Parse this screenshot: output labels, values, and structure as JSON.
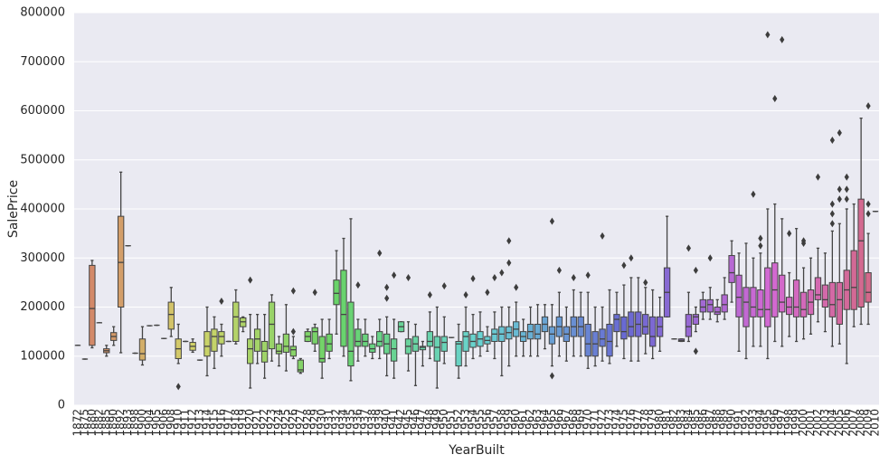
{
  "chart_data": {
    "type": "box",
    "x_label": "YearBuilt",
    "y_label": "SalePrice",
    "categories": [
      1872,
      1875,
      1880,
      1882,
      1885,
      1890,
      1892,
      1893,
      1898,
      1900,
      1904,
      1905,
      1906,
      1908,
      1910,
      1911,
      1912,
      1913,
      1914,
      1915,
      1916,
      1917,
      1918,
      1919,
      1920,
      1921,
      1922,
      1923,
      1924,
      1925,
      1926,
      1927,
      1928,
      1929,
      1930,
      1931,
      1932,
      1934,
      1935,
      1936,
      1937,
      1938,
      1939,
      1940,
      1941,
      1942,
      1945,
      1946,
      1947,
      1948,
      1949,
      1950,
      1951,
      1952,
      1953,
      1954,
      1955,
      1956,
      1957,
      1958,
      1959,
      1960,
      1961,
      1962,
      1963,
      1964,
      1965,
      1966,
      1967,
      1968,
      1969,
      1970,
      1971,
      1972,
      1973,
      1974,
      1975,
      1976,
      1977,
      1978,
      1979,
      1980,
      1981,
      1982,
      1983,
      1984,
      1985,
      1986,
      1987,
      1988,
      1989,
      1990,
      1991,
      1992,
      1993,
      1994,
      1995,
      1996,
      1997,
      1998,
      1999,
      2000,
      2001,
      2002,
      2003,
      2004,
      2005,
      2006,
      2007,
      2008,
      2009,
      2010
    ],
    "boxes": [
      [
        122000,
        122000,
        122000,
        122000,
        122000
      ],
      [
        94000,
        94000,
        94000,
        94000,
        94000
      ],
      [
        117000,
        122000,
        197000,
        285000,
        295000
      ],
      [
        168000,
        168000,
        168000,
        168000,
        168000
      ],
      [
        100000,
        107000,
        111000,
        115000,
        122000
      ],
      [
        122000,
        132000,
        140000,
        148000,
        160000
      ],
      [
        107000,
        200000,
        291000,
        385000,
        475000
      ],
      [
        325000,
        325000,
        325000,
        325000,
        325000
      ],
      [
        106000,
        106000,
        106000,
        106000,
        106000
      ],
      [
        82000,
        92000,
        105000,
        135000,
        160000
      ],
      [
        162000,
        162000,
        162000,
        162000,
        162000
      ],
      [
        163000,
        163000,
        163000,
        163000,
        163000
      ],
      [
        136000,
        136000,
        136000,
        136000,
        136000
      ],
      [
        140000,
        155000,
        185000,
        210000,
        240000
      ],
      [
        85000,
        95000,
        115000,
        135000,
        165000
      ],
      [
        130000,
        130000,
        130000,
        130000,
        130000
      ],
      [
        108000,
        112000,
        120000,
        128000,
        135000
      ],
      [
        92000,
        92000,
        92000,
        92000,
        92000
      ],
      [
        60000,
        100000,
        120000,
        150000,
        200000
      ],
      [
        75000,
        110000,
        140000,
        155000,
        180000
      ],
      [
        100000,
        125000,
        140000,
        150000,
        165000
      ],
      [
        130000,
        130000,
        130000,
        130000,
        130000
      ],
      [
        125000,
        130000,
        180000,
        210000,
        235000
      ],
      [
        150000,
        160000,
        170000,
        178000,
        180000
      ],
      [
        35000,
        85000,
        115000,
        135000,
        185000
      ],
      [
        85000,
        110000,
        135000,
        155000,
        185000
      ],
      [
        55000,
        88000,
        110000,
        130000,
        185000
      ],
      [
        90000,
        115000,
        165000,
        210000,
        225000
      ],
      [
        80000,
        105000,
        110000,
        125000,
        140000
      ],
      [
        70000,
        108000,
        120000,
        145000,
        205000
      ],
      [
        95000,
        100000,
        113000,
        120000,
        140000
      ],
      [
        65000,
        68000,
        72000,
        92000,
        95000
      ],
      [
        130000,
        130000,
        140000,
        150000,
        155000
      ],
      [
        110000,
        125000,
        150000,
        158000,
        165000
      ],
      [
        55000,
        88000,
        95000,
        140000,
        175000
      ],
      [
        95000,
        110000,
        125000,
        145000,
        175000
      ],
      [
        145000,
        205000,
        228000,
        255000,
        315000
      ],
      [
        100000,
        120000,
        185000,
        275000,
        340000
      ],
      [
        50000,
        80000,
        110000,
        210000,
        380000
      ],
      [
        90000,
        120000,
        130000,
        155000,
        175000
      ],
      [
        100000,
        120000,
        130000,
        145000,
        175000
      ],
      [
        95000,
        108000,
        115000,
        125000,
        140000
      ],
      [
        95000,
        120000,
        130000,
        150000,
        175000
      ],
      [
        60000,
        105000,
        125000,
        145000,
        180000
      ],
      [
        55000,
        90000,
        115000,
        135000,
        175000
      ],
      [
        150000,
        150000,
        160000,
        170000,
        170000
      ],
      [
        70000,
        105000,
        120000,
        135000,
        170000
      ],
      [
        40000,
        110000,
        125000,
        140000,
        165000
      ],
      [
        80000,
        113000,
        118000,
        120000,
        130000
      ],
      [
        95000,
        120000,
        130000,
        150000,
        190000
      ],
      [
        35000,
        90000,
        118000,
        140000,
        200000
      ],
      [
        85000,
        110000,
        128000,
        140000,
        180000
      ],
      [
        138000,
        138000,
        138000,
        138000,
        138000
      ],
      [
        55000,
        80000,
        125000,
        130000,
        165000
      ],
      [
        80000,
        110000,
        140000,
        150000,
        200000
      ],
      [
        95000,
        118000,
        130000,
        145000,
        185000
      ],
      [
        100000,
        120000,
        135000,
        150000,
        190000
      ],
      [
        110000,
        125000,
        132000,
        140000,
        160000
      ],
      [
        95000,
        130000,
        145000,
        155000,
        190000
      ],
      [
        60000,
        130000,
        145000,
        160000,
        200000
      ],
      [
        80000,
        135000,
        148000,
        160000,
        200000
      ],
      [
        100000,
        140000,
        155000,
        170000,
        210000
      ],
      [
        100000,
        130000,
        140000,
        150000,
        175000
      ],
      [
        100000,
        135000,
        150000,
        165000,
        200000
      ],
      [
        100000,
        135000,
        145000,
        165000,
        205000
      ],
      [
        115000,
        150000,
        165000,
        180000,
        205000
      ],
      [
        80000,
        125000,
        145000,
        160000,
        205000
      ],
      [
        100000,
        140000,
        160000,
        180000,
        230000
      ],
      [
        90000,
        130000,
        145000,
        160000,
        200000
      ],
      [
        100000,
        140000,
        160000,
        180000,
        235000
      ],
      [
        100000,
        140000,
        160000,
        180000,
        230000
      ],
      [
        75000,
        100000,
        125000,
        165000,
        230000
      ],
      [
        80000,
        100000,
        125000,
        150000,
        200000
      ],
      [
        90000,
        120000,
        135000,
        155000,
        200000
      ],
      [
        85000,
        100000,
        130000,
        165000,
        235000
      ],
      [
        120000,
        150000,
        175000,
        185000,
        230000
      ],
      [
        95000,
        135000,
        150000,
        180000,
        245000
      ],
      [
        90000,
        140000,
        160000,
        190000,
        260000
      ],
      [
        90000,
        140000,
        165000,
        190000,
        260000
      ],
      [
        105000,
        145000,
        160000,
        185000,
        240000
      ],
      [
        95000,
        120000,
        140000,
        180000,
        235000
      ],
      [
        110000,
        140000,
        160000,
        180000,
        220000
      ],
      [
        180000,
        180000,
        230000,
        280000,
        385000
      ],
      [
        135000,
        135000,
        135000,
        135000,
        135000
      ],
      [
        130000,
        130000,
        132000,
        135000,
        135000
      ],
      [
        130000,
        140000,
        160000,
        185000,
        230000
      ],
      [
        150000,
        165000,
        180000,
        185000,
        200000
      ],
      [
        175000,
        190000,
        200000,
        215000,
        230000
      ],
      [
        175000,
        190000,
        205000,
        215000,
        240000
      ],
      [
        170000,
        185000,
        190000,
        200000,
        215000
      ],
      [
        175000,
        190000,
        205000,
        225000,
        260000
      ],
      [
        210000,
        250000,
        270000,
        305000,
        335000
      ],
      [
        110000,
        180000,
        220000,
        265000,
        310000
      ],
      [
        95000,
        160000,
        210000,
        240000,
        330000
      ],
      [
        120000,
        180000,
        200000,
        240000,
        300000
      ],
      [
        120000,
        180000,
        195000,
        235000,
        310000
      ],
      [
        95000,
        160000,
        195000,
        280000,
        400000
      ],
      [
        130000,
        180000,
        235000,
        290000,
        410000
      ],
      [
        120000,
        190000,
        210000,
        265000,
        380000
      ],
      [
        140000,
        185000,
        200000,
        220000,
        270000
      ],
      [
        130000,
        180000,
        200000,
        255000,
        360000
      ],
      [
        135000,
        180000,
        195000,
        230000,
        280000
      ],
      [
        145000,
        185000,
        210000,
        235000,
        300000
      ],
      [
        170000,
        215000,
        225000,
        260000,
        320000
      ],
      [
        150000,
        200000,
        215000,
        245000,
        310000
      ],
      [
        120000,
        180000,
        205000,
        250000,
        355000
      ],
      [
        125000,
        165000,
        215000,
        250000,
        370000
      ],
      [
        85000,
        195000,
        235000,
        275000,
        400000
      ],
      [
        160000,
        195000,
        240000,
        315000,
        410000
      ],
      [
        165000,
        200000,
        335000,
        420000,
        585000
      ],
      [
        165000,
        210000,
        230000,
        270000,
        350000
      ],
      [
        395000,
        395000,
        395000,
        395000,
        395000
      ]
    ],
    "outliers": [
      [],
      [],
      [],
      [],
      [],
      [],
      [],
      [],
      [],
      [],
      [],
      [],
      [],
      [],
      [
        38000
      ],
      [],
      [],
      [],
      [],
      [],
      [
        212000
      ],
      [],
      [],
      [],
      [
        255000
      ],
      [],
      [],
      [],
      [],
      [],
      [
        150000,
        233000
      ],
      [],
      [],
      [
        230000
      ],
      [],
      [],
      [],
      [],
      [],
      [
        245000
      ],
      [],
      [],
      [
        310000
      ],
      [
        218000,
        240000
      ],
      [
        265000
      ],
      [],
      [
        260000
      ],
      [],
      [],
      [
        225000
      ],
      [],
      [
        243000
      ],
      [],
      [],
      [
        225000
      ],
      [
        258000
      ],
      [],
      [
        230000
      ],
      [
        260000
      ],
      [
        270000
      ],
      [
        290000,
        335000
      ],
      [
        240000
      ],
      [],
      [],
      [],
      [],
      [
        60000,
        375000
      ],
      [
        275000
      ],
      [],
      [
        260000
      ],
      [],
      [
        265000
      ],
      [],
      [
        345000
      ],
      [],
      [],
      [
        285000
      ],
      [
        300000
      ],
      [],
      [
        250000
      ],
      [],
      [],
      [],
      [],
      [],
      [
        320000
      ],
      [
        110000,
        275000
      ],
      [],
      [
        300000
      ],
      [],
      [],
      [],
      [],
      [],
      [
        430000
      ],
      [
        325000,
        340000
      ],
      [
        755000
      ],
      [
        625000
      ],
      [
        745000
      ],
      [
        350000
      ],
      [],
      [
        330000,
        335000
      ],
      [],
      [
        465000
      ],
      [],
      [
        370000,
        390000,
        410000,
        540000
      ],
      [
        420000,
        440000,
        555000
      ],
      [
        420000,
        440000,
        465000
      ],
      [],
      [],
      [
        390000,
        410000,
        610000
      ],
      []
    ],
    "palette": "husl",
    "outlier_color": "#3d3d3d",
    "background": "#eaeaf2",
    "grid": true,
    "ylim": [
      0,
      800000
    ],
    "yticks": [
      0,
      100000,
      200000,
      300000,
      400000,
      500000,
      600000,
      700000,
      800000
    ]
  }
}
